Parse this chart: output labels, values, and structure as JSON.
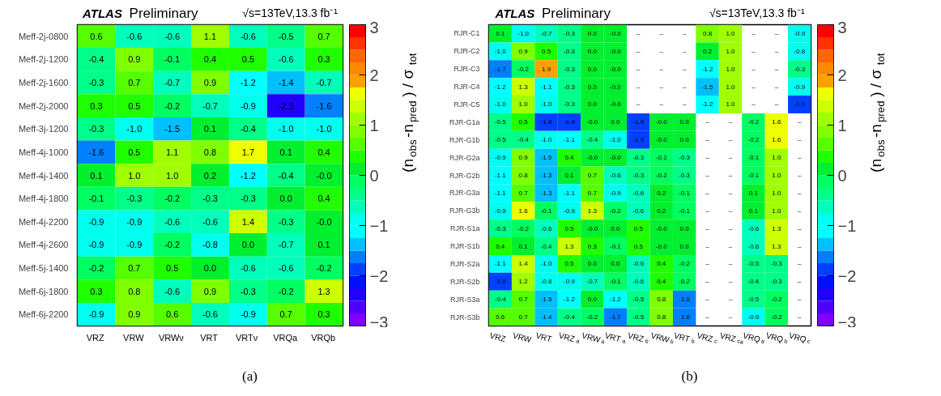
{
  "chart_data": [
    {
      "type": "heatmap",
      "title": "ATLAS Preliminary",
      "subtitle": "√s=13TeV,13.3 fb⁻¹",
      "clabel": "(n$_{obs}$-n$_{pred}$) / σ$_{tot}$",
      "annotations": [
        "(a)"
      ],
      "clim": [
        -3,
        3
      ],
      "cticks": [
        -3,
        -2,
        -1,
        0,
        1,
        2,
        3
      ],
      "categories": [
        "VRZ",
        "VRW",
        "VRWν",
        "VRT",
        "VRTν",
        "VRQa",
        "VRQb"
      ],
      "y_categories": [
        "Meff-2j-0800",
        "Meff-2j-1200",
        "Meff-2j-1600",
        "Meff-2j-2000",
        "Meff-3j-1200",
        "Meff-4j-1000",
        "Meff-4j-1400",
        "Meff-4j-1800",
        "Meff-4j-2200",
        "Meff-4j-2600",
        "Meff-5j-1400",
        "Meff-6j-1800",
        "Meff-6j-2200"
      ],
      "cells": [
        [
          0.6,
          -0.6,
          -0.6,
          1.1,
          -0.6,
          -0.5,
          0.7
        ],
        [
          -0.4,
          0.9,
          -0.1,
          0.4,
          0.5,
          -0.6,
          0.3
        ],
        [
          -0.3,
          0.7,
          -0.7,
          0.9,
          -1.2,
          -1.4,
          -0.7
        ],
        [
          0.3,
          0.5,
          -0.2,
          -0.7,
          -0.9,
          -2.3,
          -1.6
        ],
        [
          -0.3,
          -1.0,
          -1.5,
          0.1,
          -0.4,
          -1.0,
          -1.0
        ],
        [
          -1.6,
          0.5,
          1.1,
          0.8,
          1.7,
          0.1,
          0.4
        ],
        [
          0.1,
          1.0,
          1.0,
          0.2,
          -1.2,
          -0.4,
          -0.0
        ],
        [
          -0.1,
          -0.3,
          -0.2,
          -0.3,
          -0.3,
          0.0,
          0.4
        ],
        [
          -0.9,
          -0.9,
          -0.6,
          -0.6,
          1.4,
          -0.3,
          -0.0
        ],
        [
          -0.9,
          -0.9,
          -0.2,
          -0.8,
          0.0,
          -0.7,
          0.1
        ],
        [
          -0.2,
          0.7,
          0.5,
          0.0,
          -0.6,
          -0.6,
          -0.2
        ],
        [
          0.3,
          0.8,
          -0.6,
          0.9,
          -0.3,
          -0.2,
          1.3
        ],
        [
          -0.9,
          0.9,
          0.6,
          -0.6,
          -0.9,
          0.7,
          0.3
        ]
      ],
      "cell_labels": [
        [
          "0.6",
          "-0.6",
          "-0.6",
          "1.1",
          "-0.6",
          "-0.5",
          "0.7"
        ],
        [
          "-0.4",
          "0.9",
          "-0.1",
          "0.4",
          "0.5",
          "-0.6",
          "0.3"
        ],
        [
          "-0.3",
          "0.7",
          "-0.7",
          "0.9",
          "-1.2",
          "-1.4",
          "-0.7"
        ],
        [
          "0.3",
          "0.5",
          "-0.2",
          "-0.7",
          "-0.9",
          "-2.3",
          "-1.6"
        ],
        [
          "-0.3",
          "-1.0",
          "-1.5",
          "0.1",
          "-0.4",
          "-1.0",
          "-1.0"
        ],
        [
          "-1.6",
          "0.5",
          "1.1",
          "0.8",
          "1.7",
          "0.1",
          "0.4"
        ],
        [
          "0.1",
          "1.0",
          "1.0",
          "0.2",
          "-1.2",
          "-0.4",
          "-0.0"
        ],
        [
          "-0.1",
          "-0.3",
          "-0.2",
          "-0.3",
          "-0.3",
          "0.0",
          "0.4"
        ],
        [
          "-0.9",
          "-0.9",
          "-0.6",
          "-0.6",
          "1.4",
          "-0.3",
          "-0.0"
        ],
        [
          "-0.9",
          "-0.9",
          "-0.2",
          "-0.8",
          "0.0",
          "-0.7",
          "0.1"
        ],
        [
          "-0.2",
          "0.7",
          "0.5",
          "0.0",
          "-0.6",
          "-0.6",
          "-0.2"
        ],
        [
          "0.3",
          "0.8",
          "-0.6",
          "0.9",
          "-0.3",
          "-0.2",
          "1.3"
        ],
        [
          "-0.9",
          "0.9",
          "0.6",
          "-0.6",
          "-0.9",
          "0.7",
          "0.3"
        ]
      ]
    },
    {
      "type": "heatmap",
      "title": "ATLAS Preliminary",
      "subtitle": "√s=13TeV,13.3 fb⁻¹",
      "clabel": "(n$_{obs}$-n$_{pred}$) / σ$_{tot}$",
      "annotations": [
        "(b)"
      ],
      "clim": [
        -3,
        3
      ],
      "cticks": [
        -3,
        -2,
        -1,
        0,
        1,
        2,
        3
      ],
      "categories": [
        "VRZ",
        "VRW",
        "VRT",
        "VRZ$_{a}$",
        "VRW$_{a}$",
        "VRT$_{a}$",
        "VRZ$_{b}$",
        "VRW$_{b}$",
        "VRT$_{b}$",
        "VRZ$_{c}$",
        "VRZ$_{ca}$",
        "VRQ$_{a}$",
        "VRQ$_{b}$",
        "VRQ$_{c}$"
      ],
      "y_categories": [
        "RJR-C1",
        "RJR-C2",
        "RJR-C3",
        "RJR-C4",
        "RJR-C5",
        "RJR-G1a",
        "RJR-G1b",
        "RJR-G2a",
        "RJR-G2b",
        "RJR-G3a",
        "RJR-G3b",
        "RJR-S1a",
        "RJR-S1b",
        "RJR-S2a",
        "RJR-S2b",
        "RJR-S3a",
        "RJR-S3b"
      ],
      "cells": [
        [
          0.1,
          -1.0,
          -0.7,
          -0.3,
          0.0,
          -0.0,
          null,
          null,
          null,
          0.8,
          1.0,
          null,
          null,
          -0.9
        ],
        [
          -1.0,
          0.9,
          0.5,
          -0.3,
          0.0,
          -0.0,
          null,
          null,
          null,
          0.2,
          1.0,
          null,
          null,
          -0.8
        ],
        [
          -1.7,
          -0.2,
          1.9,
          -0.3,
          0.0,
          -0.0,
          null,
          null,
          null,
          -1.2,
          1.0,
          null,
          null,
          -0.3
        ],
        [
          -1.2,
          1.3,
          -1.1,
          -0.3,
          0.0,
          -0.0,
          null,
          null,
          null,
          -1.5,
          1.0,
          null,
          null,
          -0.9
        ],
        [
          -1.0,
          1.0,
          -1.0,
          -0.3,
          0.0,
          -0.0,
          null,
          null,
          null,
          -1.2,
          1.0,
          null,
          null,
          -1.9
        ],
        [
          -0.5,
          0.5,
          -1.8,
          -1.9,
          -0.0,
          0.0,
          -1.9,
          -0.0,
          0.0,
          null,
          null,
          -0.2,
          1.6,
          null
        ],
        [
          -0.5,
          -0.4,
          -1.0,
          -1.1,
          -0.4,
          -1.0,
          -1.9,
          -0.0,
          0.0,
          null,
          null,
          -0.2,
          1.6,
          null
        ],
        [
          -0.9,
          0.9,
          -1.5,
          0.4,
          -0.0,
          -0.0,
          -0.3,
          -0.2,
          -0.3,
          null,
          null,
          -0.1,
          1.0,
          null
        ],
        [
          -1.1,
          0.8,
          -1.3,
          0.1,
          0.7,
          -0.6,
          -0.3,
          -0.2,
          -0.3,
          null,
          null,
          -0.1,
          1.0,
          null
        ],
        [
          -1.1,
          0.7,
          -1.3,
          -1.1,
          0.7,
          -0.9,
          -0.6,
          0.2,
          -0.1,
          null,
          null,
          0.1,
          1.0,
          null
        ],
        [
          -0.9,
          1.6,
          -0.1,
          -0.9,
          1.3,
          -0.2,
          -0.6,
          0.2,
          -0.1,
          null,
          null,
          0.1,
          1.0,
          null
        ],
        [
          -0.3,
          -0.2,
          -0.6,
          0.5,
          -0.0,
          0.0,
          0.5,
          -0.0,
          0.0,
          null,
          null,
          -0.6,
          1.3,
          null
        ],
        [
          0.4,
          0.1,
          -0.4,
          1.3,
          0.3,
          -0.1,
          0.5,
          -0.0,
          0.0,
          null,
          null,
          -0.6,
          1.3,
          null
        ],
        [
          -1.1,
          1.4,
          -1.0,
          0.5,
          0.0,
          0.0,
          -0.6,
          0.4,
          -0.2,
          null,
          null,
          -0.5,
          -0.3,
          null
        ],
        [
          -1.8,
          1.2,
          -0.8,
          -0.9,
          -0.7,
          -0.1,
          -0.6,
          0.4,
          -0.2,
          null,
          null,
          -0.4,
          -0.3,
          null
        ],
        [
          -0.4,
          0.7,
          -1.5,
          -1.2,
          0.0,
          -1.2,
          -0.5,
          0.8,
          -1.6,
          null,
          null,
          -0.5,
          -0.2,
          null
        ],
        [
          0.6,
          0.7,
          -1.4,
          -0.4,
          -0.2,
          -1.7,
          -0.5,
          0.8,
          -1.6,
          null,
          null,
          -0.9,
          -0.2,
          null
        ]
      ],
      "cell_labels": [
        [
          "0.1",
          "-1.0",
          "-0.7",
          "-0.3",
          "0.0",
          "-0.0",
          "–",
          "–",
          "–",
          "0.8",
          "1.0",
          "–",
          "–",
          "-0.9"
        ],
        [
          "-1.0",
          "0.9",
          "0.5",
          "-0.3",
          "0.0",
          "-0.0",
          "–",
          "–",
          "–",
          "0.2",
          "1.0",
          "–",
          "–",
          "-0.8"
        ],
        [
          "-1.7",
          "-0.2",
          "1.9",
          "-0.3",
          "0.0",
          "-0.0",
          "–",
          "–",
          "–",
          "-1.2",
          "1.0",
          "–",
          "–",
          "-0.3"
        ],
        [
          "-1.2",
          "1.3",
          "-1.1",
          "-0.3",
          "0.0",
          "-0.0",
          "–",
          "–",
          "–",
          "-1.5",
          "1.0",
          "–",
          "–",
          "-0.9"
        ],
        [
          "-1.0",
          "1.0",
          "-1.0",
          "-0.3",
          "0.0",
          "-0.0",
          "–",
          "–",
          "–",
          "-1.2",
          "1.0",
          "–",
          "–",
          "-1.9"
        ],
        [
          "-0.5",
          "0.5",
          "-1.8",
          "-1.9",
          "-0.0",
          "0.0",
          "-1.9",
          "-0.0",
          "0.0",
          "–",
          "–",
          "-0.2",
          "1.6",
          "–"
        ],
        [
          "-0.5",
          "-0.4",
          "-1.0",
          "-1.1",
          "-0.4",
          "-1.0",
          "-1.9",
          "-0.0",
          "0.0",
          "–",
          "–",
          "-0.2",
          "1.6",
          "–"
        ],
        [
          "-0.9",
          "0.9",
          "-1.5",
          "0.4",
          "-0.0",
          "-0.0",
          "-0.3",
          "-0.2",
          "-0.3",
          "–",
          "–",
          "-0.1",
          "1.0",
          "–"
        ],
        [
          "-1.1",
          "0.8",
          "-1.3",
          "0.1",
          "0.7",
          "-0.6",
          "-0.3",
          "-0.2",
          "-0.3",
          "–",
          "–",
          "-0.1",
          "1.0",
          "–"
        ],
        [
          "-1.1",
          "0.7",
          "-1.3",
          "-1.1",
          "0.7",
          "-0.9",
          "-0.6",
          "0.2",
          "-0.1",
          "–",
          "–",
          "0.1",
          "1.0",
          "–"
        ],
        [
          "-0.9",
          "1.6",
          "-0.1",
          "-0.9",
          "1.3",
          "-0.2",
          "-0.6",
          "0.2",
          "-0.1",
          "–",
          "–",
          "0.1",
          "1.0",
          "–"
        ],
        [
          "-0.3",
          "-0.2",
          "-0.6",
          "0.5",
          "-0.0",
          "0.0",
          "0.5",
          "-0.0",
          "0.0",
          "–",
          "–",
          "-0.6",
          "1.3",
          "–"
        ],
        [
          "0.4",
          "0.1",
          "-0.4",
          "1.3",
          "0.3",
          "-0.1",
          "0.5",
          "-0.0",
          "0.0",
          "–",
          "–",
          "-0.6",
          "1.3",
          "–"
        ],
        [
          "-1.1",
          "1.4",
          "-1.0",
          "0.5",
          "0.0",
          "0.0",
          "-0.6",
          "0.4",
          "-0.2",
          "–",
          "–",
          "-0.5",
          "-0.3",
          "–"
        ],
        [
          "-1.8",
          "1.2",
          "-0.8",
          "-0.9",
          "-0.7",
          "-0.1",
          "-0.6",
          "0.4",
          "-0.2",
          "–",
          "–",
          "-0.4",
          "-0.3",
          "–"
        ],
        [
          "-0.4",
          "0.7",
          "-1.5",
          "-1.2",
          "0.0",
          "-1.2",
          "-0.5",
          "0.8",
          "-1.6",
          "–",
          "–",
          "-0.5",
          "-0.2",
          "–"
        ],
        [
          "0.6",
          "0.7",
          "-1.4",
          "-0.4",
          "-0.2",
          "-1.7",
          "-0.5",
          "0.8",
          "-1.6",
          "–",
          "–",
          "-0.9",
          "-0.2",
          "–"
        ]
      ]
    }
  ]
}
